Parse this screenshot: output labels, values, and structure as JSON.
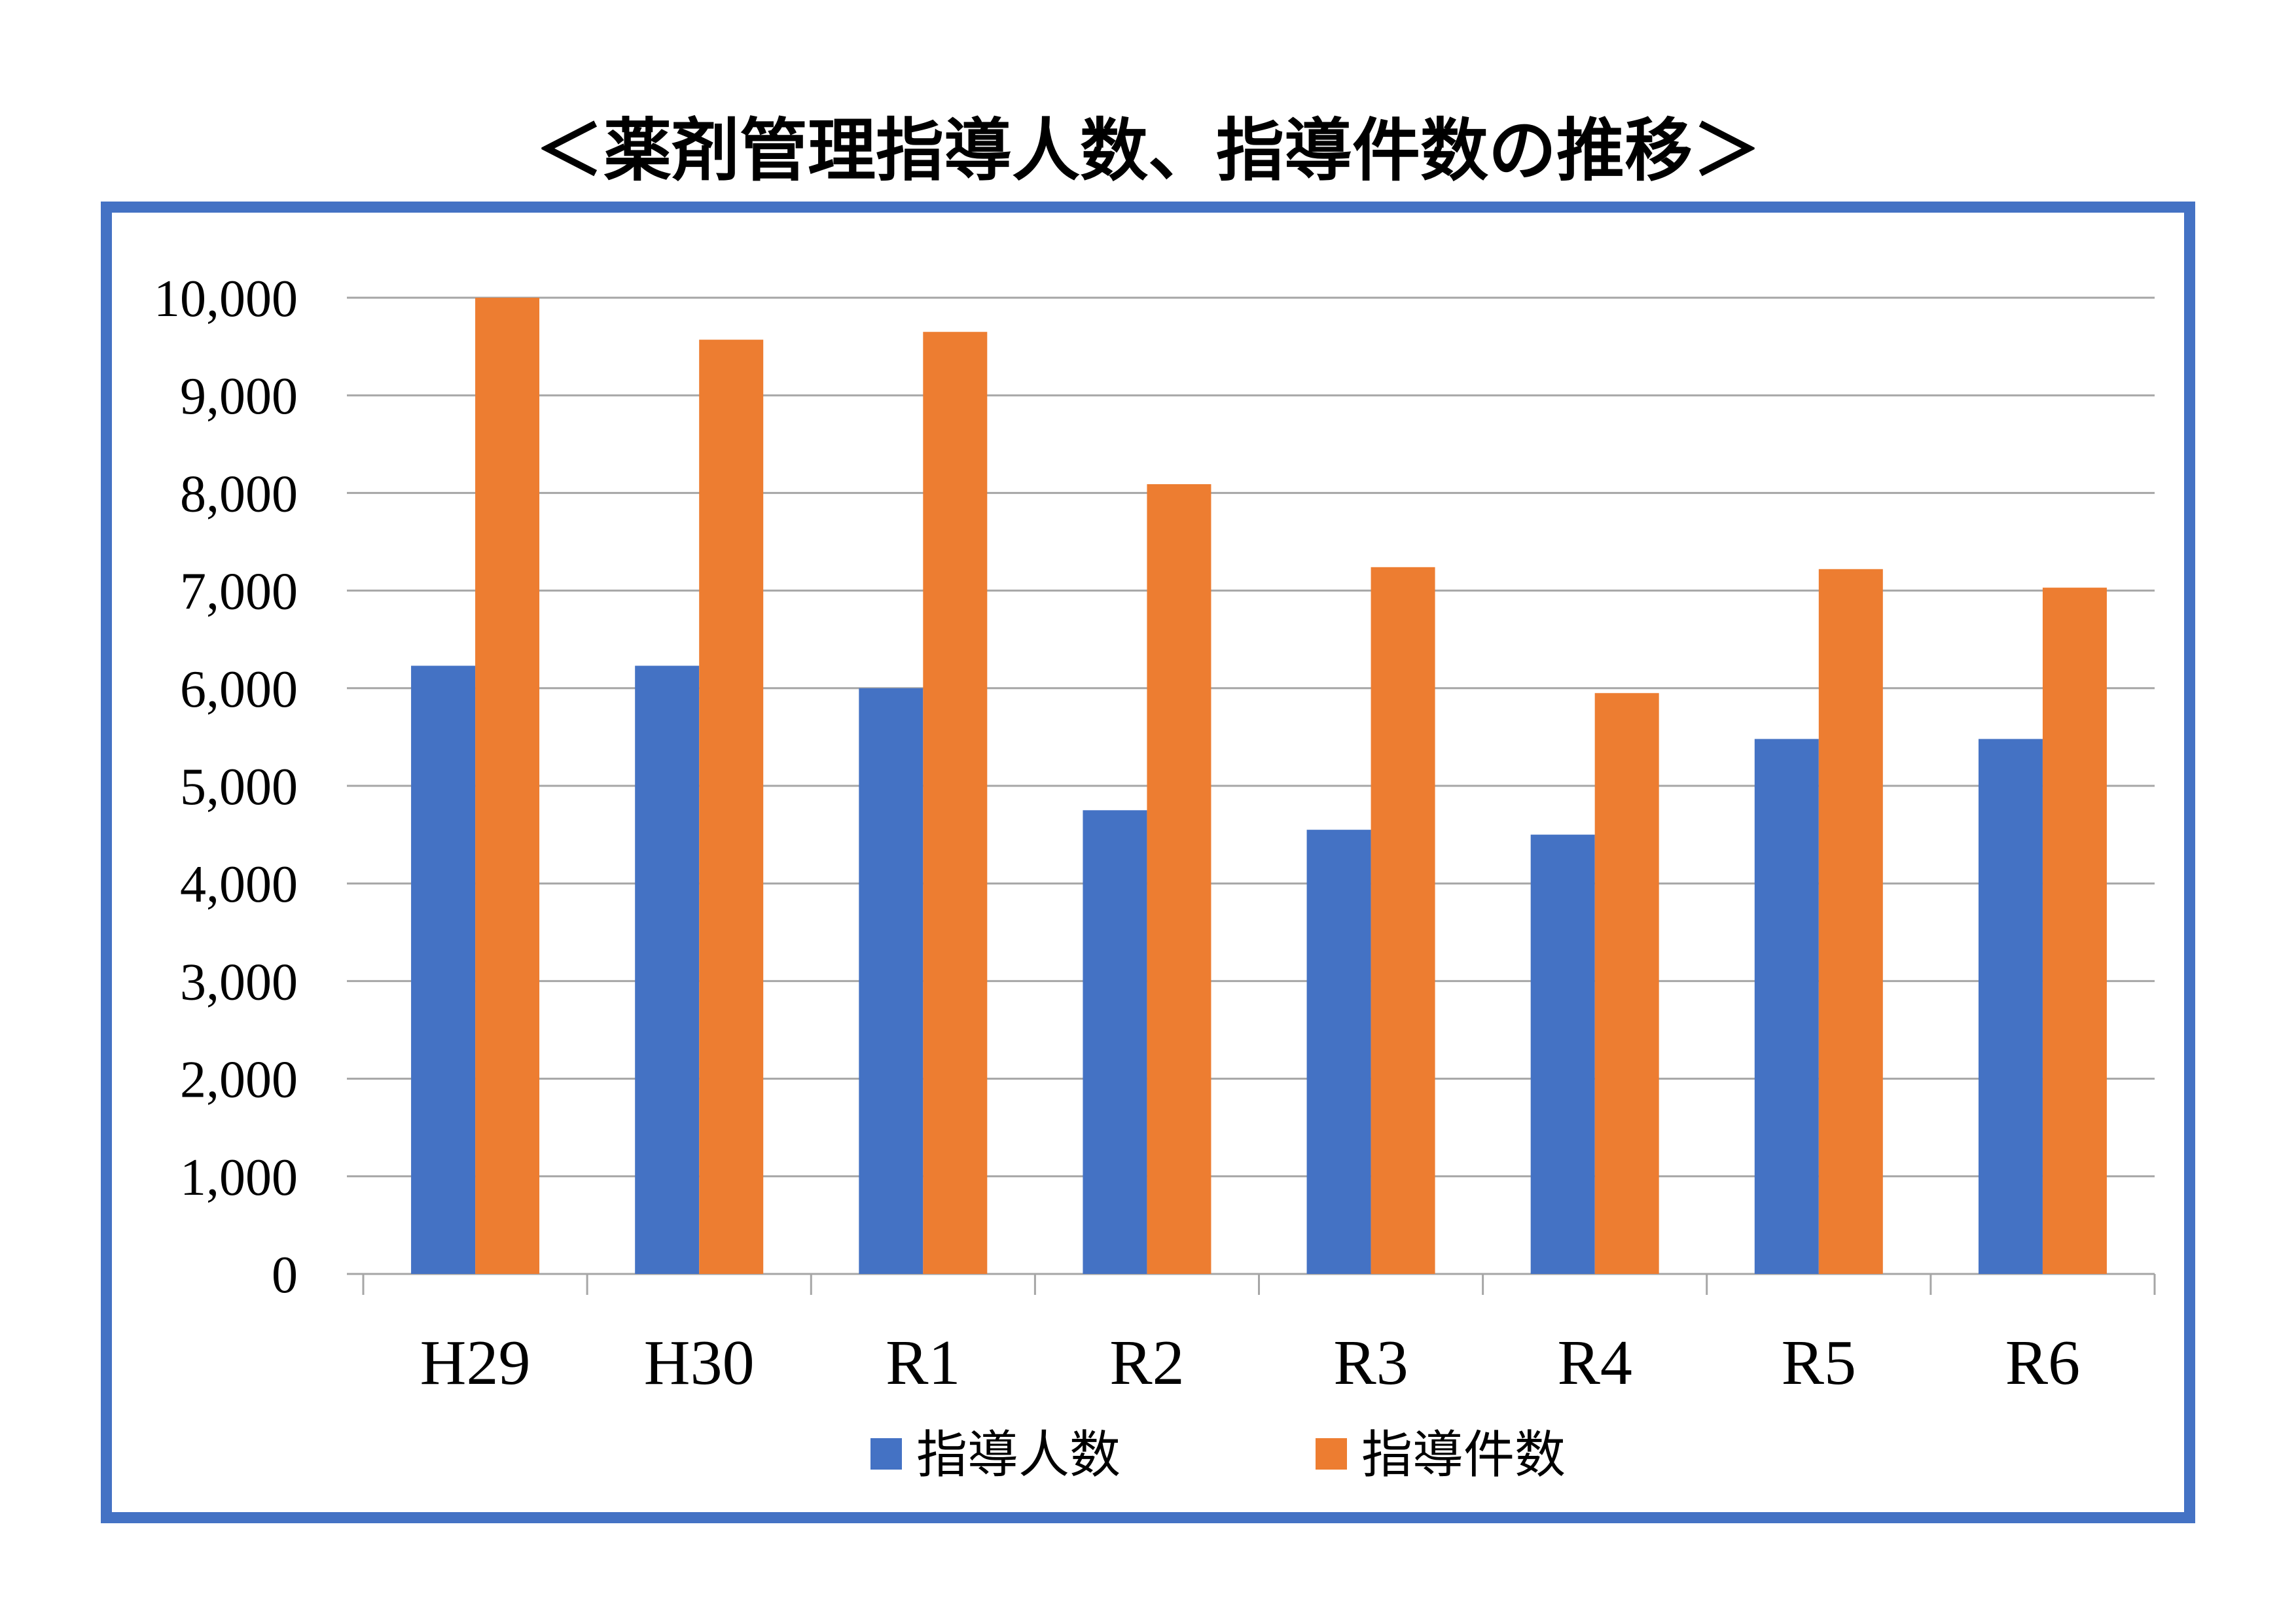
{
  "chart_data": {
    "type": "bar",
    "title": "＜薬剤管理指導人数、指導件数の推移＞",
    "xlabel": "",
    "ylabel": "",
    "categories": [
      "H29",
      "H30",
      "R1",
      "R2",
      "R3",
      "R4",
      "R5",
      "R6"
    ],
    "series": [
      {
        "name": "指導人数",
        "color": "#4472C4",
        "values": [
          6230,
          6230,
          6000,
          4750,
          4550,
          4500,
          5480,
          5480
        ]
      },
      {
        "name": "指導件数",
        "color": "#ED7D31",
        "values": [
          10000,
          9570,
          9650,
          8090,
          7240,
          5950,
          7220,
          7030
        ]
      }
    ],
    "ylim": [
      0,
      10000
    ],
    "yticks": [
      "0",
      "1,000",
      "2,000",
      "3,000",
      "4,000",
      "5,000",
      "6,000",
      "7,000",
      "8,000",
      "9,000",
      "10,000"
    ],
    "grid": true,
    "legend": "bottom",
    "frame_color": "#4472C4"
  }
}
